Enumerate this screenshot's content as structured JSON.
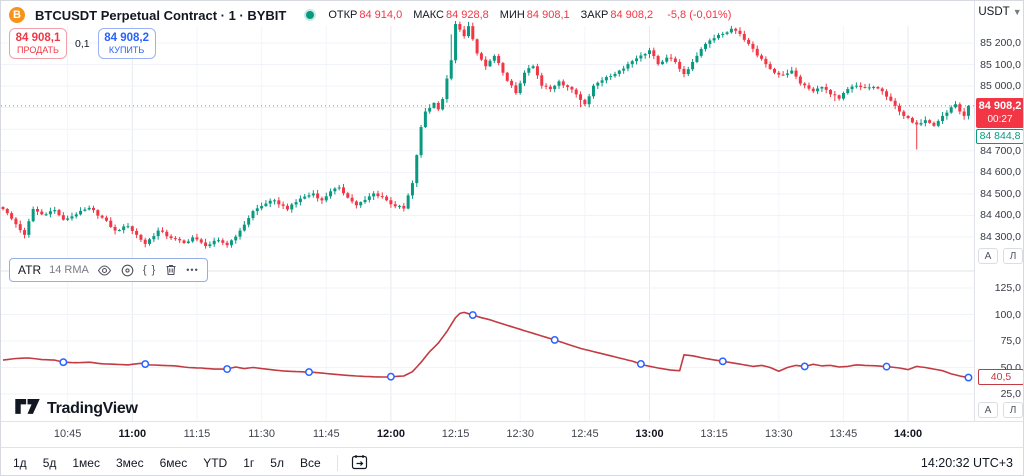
{
  "header": {
    "title": "BTCUSDT Perpetual Contract · 1 · BYBIT",
    "ohlc": [
      {
        "label": "ОТКР",
        "value": "84 914,0"
      },
      {
        "label": "МАКС",
        "value": "84 928,8"
      },
      {
        "label": "МИН",
        "value": "84 908,1"
      },
      {
        "label": "ЗАКР",
        "value": "84 908,2"
      }
    ],
    "change": "-5,8 (-0,01%)",
    "value_color": "#f23645"
  },
  "trade_panel": {
    "sell": {
      "price": "84 908,1",
      "label": "ПРОДАТЬ"
    },
    "spread": "0,1",
    "buy": {
      "price": "84 908,2",
      "label": "КУПИТЬ"
    }
  },
  "indicator_legend": {
    "name": "ATR",
    "params": "14 RMA",
    "source_code_glyph": "{ }",
    "more_glyph": "•••"
  },
  "price_axis": {
    "currency": "USDT",
    "tick_labels": [
      "85 200,0",
      "85 100,0",
      "85 000,0",
      "84 700,0",
      "84 600,0",
      "84 500,0",
      "84 400,0",
      "84 300,0"
    ],
    "last_price_label": "84 908,2",
    "countdown": "00:27",
    "secondary_price_label": "84 844,8",
    "auto_button": "А",
    "log_button": "Л"
  },
  "atr_axis": {
    "tick_labels": [
      "125,0",
      "100,0",
      "75,0",
      "50,0",
      "25,0"
    ],
    "current_value_label": "40,5"
  },
  "time_axis": {
    "labels": [
      {
        "text": "10:45",
        "bold": false
      },
      {
        "text": "11:00",
        "bold": true
      },
      {
        "text": "11:15",
        "bold": false
      },
      {
        "text": "11:30",
        "bold": false
      },
      {
        "text": "11:45",
        "bold": false
      },
      {
        "text": "12:00",
        "bold": true
      },
      {
        "text": "12:15",
        "bold": false
      },
      {
        "text": "12:30",
        "bold": false
      },
      {
        "text": "12:45",
        "bold": false
      },
      {
        "text": "13:00",
        "bold": true
      },
      {
        "text": "13:15",
        "bold": false
      },
      {
        "text": "13:30",
        "bold": false
      },
      {
        "text": "13:45",
        "bold": false
      },
      {
        "text": "14:00",
        "bold": true
      }
    ]
  },
  "footer": {
    "ranges": [
      "1д",
      "5д",
      "1мес",
      "3мес",
      "6мес",
      "YTD",
      "1г",
      "5л",
      "Все"
    ],
    "clock": "14:20:32 UTC+3"
  },
  "logo": {
    "text": "TradingView"
  },
  "chart_data": [
    {
      "type": "candlestick",
      "symbol": "BTCUSDT",
      "exchange": "BYBIT",
      "interval": "1",
      "open": 84914.0,
      "high": 84928.8,
      "low": 84908.1,
      "close": 84908.2,
      "change": -5.8,
      "change_pct": -0.01,
      "last_price": 84908.2,
      "secondary_label_price": 84844.8,
      "up_color": "#089981",
      "down_color": "#f23645",
      "baseline_price": 84908.2,
      "time_start": "10:30",
      "minutes_per_bar": 1,
      "bars": 225,
      "y_ticks": [
        85200,
        85100,
        85000,
        84700,
        84600,
        84500,
        84400,
        84300
      ],
      "y_grid": [
        84300,
        84400,
        84500,
        84600,
        84700,
        84800,
        84900,
        85000,
        85100,
        85200
      ],
      "close_waypoints": [
        [
          0,
          84430
        ],
        [
          2,
          84385
        ],
        [
          5,
          84310
        ],
        [
          7,
          84430
        ],
        [
          9,
          84405
        ],
        [
          12,
          84425
        ],
        [
          14,
          84380
        ],
        [
          17,
          84405
        ],
        [
          20,
          84435
        ],
        [
          23,
          84390
        ],
        [
          26,
          84330
        ],
        [
          29,
          84350
        ],
        [
          31,
          84310
        ],
        [
          33,
          84268
        ],
        [
          36,
          84330
        ],
        [
          39,
          84295
        ],
        [
          42,
          84272
        ],
        [
          44,
          84298
        ],
        [
          47,
          84258
        ],
        [
          50,
          84285
        ],
        [
          52,
          84262
        ],
        [
          55,
          84330
        ],
        [
          58,
          84420
        ],
        [
          61,
          84455
        ],
        [
          63,
          84470
        ],
        [
          66,
          84428
        ],
        [
          69,
          84478
        ],
        [
          72,
          84502
        ],
        [
          74,
          84470
        ],
        [
          76,
          84512
        ],
        [
          78,
          84530
        ],
        [
          80,
          84482
        ],
        [
          82,
          84447
        ],
        [
          84,
          84472
        ],
        [
          86,
          84502
        ],
        [
          88,
          84487
        ],
        [
          90,
          84452
        ],
        [
          93,
          84432
        ],
        [
          95,
          84550
        ],
        [
          96,
          84680
        ],
        [
          97,
          84810
        ],
        [
          98,
          84882
        ],
        [
          100,
          84922
        ],
        [
          101,
          84892
        ],
        [
          102,
          84940
        ],
        [
          104,
          85120
        ],
        [
          105,
          85288
        ],
        [
          107,
          85232
        ],
        [
          108,
          85278
        ],
        [
          110,
          85152
        ],
        [
          112,
          85092
        ],
        [
          114,
          85140
        ],
        [
          116,
          85062
        ],
        [
          119,
          84968
        ],
        [
          121,
          85062
        ],
        [
          123,
          85092
        ],
        [
          125,
          85002
        ],
        [
          127,
          84986
        ],
        [
          129,
          85022
        ],
        [
          131,
          84996
        ],
        [
          133,
          84962
        ],
        [
          135,
          84916
        ],
        [
          137,
          85002
        ],
        [
          140,
          85042
        ],
        [
          143,
          85072
        ],
        [
          145,
          85102
        ],
        [
          148,
          85142
        ],
        [
          150,
          85166
        ],
        [
          152,
          85102
        ],
        [
          154,
          85132
        ],
        [
          156,
          85112
        ],
        [
          158,
          85056
        ],
        [
          160,
          85112
        ],
        [
          162,
          85172
        ],
        [
          164,
          85212
        ],
        [
          167,
          85242
        ],
        [
          169,
          85266
        ],
        [
          171,
          85242
        ],
        [
          173,
          85196
        ],
        [
          175,
          85142
        ],
        [
          177,
          85102
        ],
        [
          179,
          85062
        ],
        [
          181,
          85052
        ],
        [
          183,
          85072
        ],
        [
          185,
          85012
        ],
        [
          188,
          84976
        ],
        [
          190,
          84996
        ],
        [
          192,
          84962
        ],
        [
          194,
          84942
        ],
        [
          196,
          84986
        ],
        [
          198,
          85002
        ],
        [
          200,
          84992
        ],
        [
          202,
          84996
        ],
        [
          204,
          84976
        ],
        [
          206,
          84932
        ],
        [
          208,
          84882
        ],
        [
          210,
          84852
        ],
        [
          212,
          84822
        ],
        [
          214,
          84842
        ],
        [
          216,
          84816
        ],
        [
          218,
          84862
        ],
        [
          220,
          84902
        ],
        [
          221,
          84916
        ],
        [
          222,
          84882
        ],
        [
          223,
          84862
        ],
        [
          224,
          84908
        ]
      ],
      "wick_events": [
        {
          "i": 33,
          "low": 84252
        },
        {
          "i": 47,
          "low": 84246
        },
        {
          "i": 104,
          "high": 85240
        },
        {
          "i": 105,
          "high": 85302
        },
        {
          "i": 108,
          "high": 85298
        },
        {
          "i": 134,
          "low": 84902
        },
        {
          "i": 193,
          "low": 84930
        },
        {
          "i": 212,
          "low": 84706
        }
      ]
    },
    {
      "type": "line",
      "name": "ATR",
      "length": 14,
      "smoothing": "RMA",
      "color": "#c23b42",
      "current_value": 40.5,
      "y_ticks": [
        125,
        100,
        75,
        50,
        25
      ],
      "waypoints": [
        [
          0,
          57
        ],
        [
          3,
          58.5
        ],
        [
          6,
          59
        ],
        [
          9,
          57.5
        ],
        [
          12,
          57
        ],
        [
          14,
          55
        ],
        [
          17,
          54.5
        ],
        [
          20,
          55
        ],
        [
          23,
          53.5
        ],
        [
          26,
          53
        ],
        [
          29,
          52.5
        ],
        [
          32,
          54
        ],
        [
          34,
          52.5
        ],
        [
          37,
          52
        ],
        [
          40,
          51.5
        ],
        [
          43,
          50
        ],
        [
          46,
          49.5
        ],
        [
          49,
          48.5
        ],
        [
          52,
          48.5
        ],
        [
          54,
          50.5
        ],
        [
          56,
          49
        ],
        [
          58,
          50
        ],
        [
          60,
          49
        ],
        [
          63,
          47.5
        ],
        [
          66,
          46.5
        ],
        [
          69,
          46
        ],
        [
          72,
          45.5
        ],
        [
          76,
          44
        ],
        [
          80,
          42.5
        ],
        [
          84,
          41.5
        ],
        [
          88,
          41
        ],
        [
          91,
          41.5
        ],
        [
          93,
          42
        ],
        [
          95,
          46
        ],
        [
          97,
          55
        ],
        [
          99,
          65
        ],
        [
          101,
          73
        ],
        [
          103,
          84
        ],
        [
          105,
          97
        ],
        [
          106,
          101
        ],
        [
          107,
          102
        ],
        [
          109,
          99.5
        ],
        [
          111,
          97
        ],
        [
          113,
          95
        ],
        [
          116,
          91
        ],
        [
          120,
          86
        ],
        [
          124,
          81
        ],
        [
          128,
          76
        ],
        [
          131,
          72
        ],
        [
          134,
          68
        ],
        [
          138,
          64
        ],
        [
          142,
          60
        ],
        [
          146,
          56
        ],
        [
          149,
          52
        ],
        [
          152,
          49.5
        ],
        [
          155,
          47.5
        ],
        [
          157,
          47
        ],
        [
          158,
          62
        ],
        [
          160,
          61
        ],
        [
          163,
          58.5
        ],
        [
          166,
          56.5
        ],
        [
          169,
          54.5
        ],
        [
          172,
          52.5
        ],
        [
          174,
          51
        ],
        [
          176,
          52
        ],
        [
          178,
          50
        ],
        [
          180,
          46.5
        ],
        [
          182,
          50
        ],
        [
          184,
          52
        ],
        [
          186,
          51
        ],
        [
          188,
          53
        ],
        [
          190,
          51.5
        ],
        [
          192,
          52
        ],
        [
          194,
          50.5
        ],
        [
          196,
          51
        ],
        [
          198,
          52.5
        ],
        [
          200,
          52
        ],
        [
          203,
          51.5
        ],
        [
          206,
          50.5
        ],
        [
          208,
          49.5
        ],
        [
          210,
          48
        ],
        [
          212,
          51
        ],
        [
          214,
          50
        ],
        [
          216,
          48.5
        ],
        [
          218,
          47
        ],
        [
          220,
          44
        ],
        [
          222,
          42
        ],
        [
          224,
          40.5
        ]
      ],
      "marker_minutes": [
        14,
        33,
        52,
        71,
        90,
        109,
        128,
        148,
        167,
        186,
        205,
        224
      ],
      "marker_style": {
        "fill": "#ffffff",
        "stroke": "#2962ff"
      }
    }
  ]
}
